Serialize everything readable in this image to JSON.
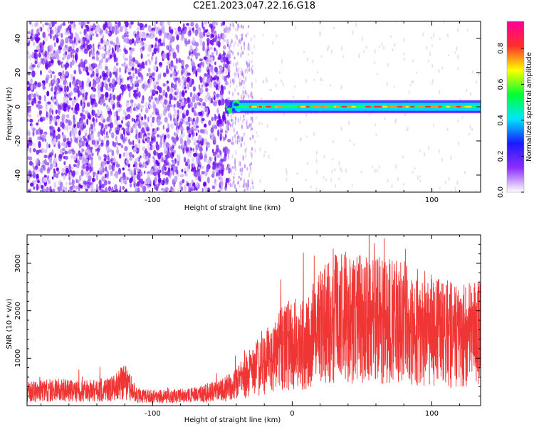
{
  "title": "C2E1.2023.047.22.16.G18",
  "chart_data": [
    {
      "type": "heatmap",
      "title": "",
      "xlabel": "Height of straight line (km)",
      "ylabel": "Frequency (Hz)",
      "xlim": [
        -190,
        135
      ],
      "ylim": [
        -50,
        50
      ],
      "xticks": [
        -100,
        0,
        100
      ],
      "yticks": [
        -40,
        -20,
        0,
        20,
        40
      ],
      "noise_region_x": [
        -190,
        -45
      ],
      "tone_start_x": -48,
      "tone_frequency": 0,
      "tone_halfwidth_hz": 3,
      "colorbar": {
        "label": "Normalized spectral amplitude",
        "range": [
          0,
          0.95
        ],
        "ticks": [
          0.0,
          0.2,
          0.4,
          0.6,
          0.8
        ],
        "colors": [
          "#ffffff",
          "#8f2cff",
          "#1a1aff",
          "#00e5ff",
          "#00ff33",
          "#ffff00",
          "#ff2d2d",
          "#ff0099"
        ]
      }
    },
    {
      "type": "line",
      "title": "",
      "xlabel": "Height of straight line (km)",
      "ylabel": "SNR (10 * v/v)",
      "xlim": [
        -190,
        135
      ],
      "ylim": [
        0,
        3600
      ],
      "xticks": [
        -100,
        0,
        100
      ],
      "yticks": [
        1000,
        2000,
        3000
      ],
      "color": "#f03535",
      "x": [
        -190,
        -170,
        -150,
        -130,
        -120,
        -110,
        -90,
        -70,
        -50,
        -40,
        -30,
        -20,
        -10,
        0,
        10,
        20,
        30,
        40,
        60,
        80,
        100,
        120,
        135
      ],
      "y": [
        280,
        330,
        300,
        350,
        500,
        200,
        190,
        220,
        330,
        450,
        700,
        900,
        1150,
        1300,
        1300,
        1650,
        1900,
        1850,
        1800,
        1750,
        1600,
        1450,
        1550
      ]
    }
  ]
}
